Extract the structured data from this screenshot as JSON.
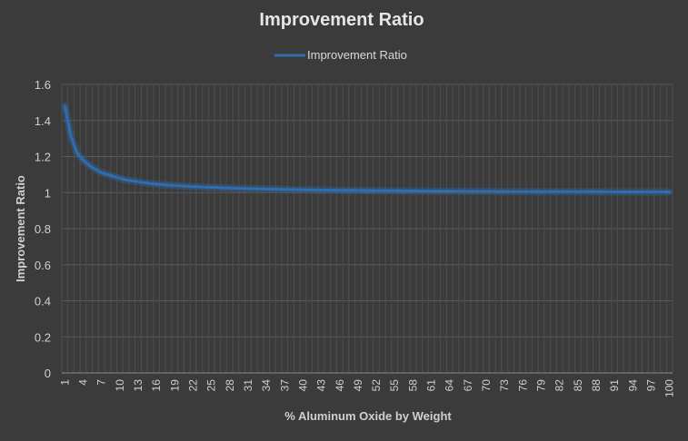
{
  "chart_data": {
    "type": "line",
    "title": "Improvement Ratio",
    "xlabel": "% Aluminum Oxide by Weight",
    "ylabel": "Improvement Ratio",
    "ylim": [
      0,
      1.6
    ],
    "ytick_labels": [
      "0",
      "0.2",
      "0.4",
      "0.6",
      "0.8",
      "1",
      "1.2",
      "1.4",
      "1.6"
    ],
    "x_tick_labels": [
      "1",
      "4",
      "7",
      "10",
      "13",
      "16",
      "19",
      "22",
      "25",
      "28",
      "31",
      "34",
      "37",
      "40",
      "43",
      "46",
      "49",
      "52",
      "55",
      "58",
      "61",
      "64",
      "67",
      "70",
      "73",
      "76",
      "79",
      "82",
      "85",
      "88",
      "91",
      "94",
      "97",
      "100"
    ],
    "grid": true,
    "legend_position": "top",
    "series": [
      {
        "name": "Improvement Ratio",
        "color": "#2e6db0",
        "x": [
          1,
          2,
          3,
          4,
          5,
          6,
          7,
          8,
          9,
          10,
          11,
          12,
          13,
          14,
          15,
          16,
          17,
          18,
          19,
          20,
          22,
          25,
          28,
          31,
          34,
          37,
          40,
          43,
          46,
          49,
          52,
          55,
          58,
          61,
          64,
          67,
          70,
          73,
          76,
          79,
          82,
          85,
          88,
          91,
          94,
          97,
          100
        ],
        "values": [
          1.48,
          1.31,
          1.22,
          1.18,
          1.15,
          1.13,
          1.11,
          1.1,
          1.09,
          1.08,
          1.07,
          1.065,
          1.06,
          1.055,
          1.05,
          1.047,
          1.044,
          1.041,
          1.039,
          1.037,
          1.033,
          1.029,
          1.025,
          1.022,
          1.02,
          1.018,
          1.016,
          1.014,
          1.013,
          1.012,
          1.011,
          1.01,
          1.009,
          1.008,
          1.008,
          1.007,
          1.007,
          1.006,
          1.006,
          1.005,
          1.005,
          1.005,
          1.005,
          1.004,
          1.004,
          1.004,
          1.004
        ]
      }
    ]
  }
}
